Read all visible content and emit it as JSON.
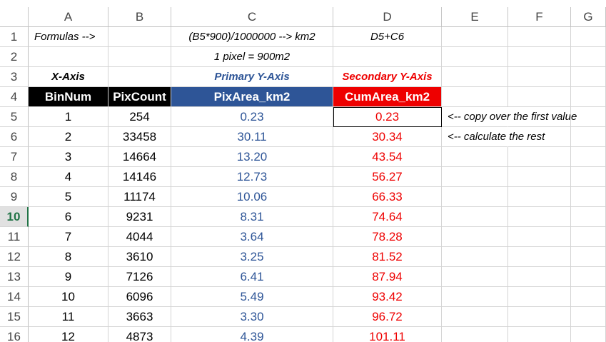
{
  "columns": [
    "A",
    "B",
    "C",
    "D",
    "E",
    "F",
    "G"
  ],
  "row_numbers": [
    "1",
    "2",
    "3",
    "4",
    "5",
    "6",
    "7",
    "8",
    "9",
    "10",
    "11",
    "12",
    "13",
    "14",
    "15",
    "16"
  ],
  "active_row": "10",
  "r1": {
    "a": "Formulas -->",
    "c": "(B5*900)/1000000 --> km2",
    "d": "D5+C6"
  },
  "r2": {
    "c": "1 pixel = 900m2"
  },
  "r3": {
    "a": "X-Axis",
    "c": "Primary Y-Axis",
    "d": "Secondary Y-Axis"
  },
  "r4": {
    "a": "BinNum",
    "b": "PixCount",
    "c": "PixArea_km2",
    "d": "CumArea_km2"
  },
  "notes": {
    "r5": "<-- copy over the first value",
    "r6": "<-- calculate the rest"
  },
  "data_rows": [
    {
      "binnum": "1",
      "pixcount": "254",
      "pixarea": "0.23",
      "cumarea": "0.23"
    },
    {
      "binnum": "2",
      "pixcount": "33458",
      "pixarea": "30.11",
      "cumarea": "30.34"
    },
    {
      "binnum": "3",
      "pixcount": "14664",
      "pixarea": "13.20",
      "cumarea": "43.54"
    },
    {
      "binnum": "4",
      "pixcount": "14146",
      "pixarea": "12.73",
      "cumarea": "56.27"
    },
    {
      "binnum": "5",
      "pixcount": "11174",
      "pixarea": "10.06",
      "cumarea": "66.33"
    },
    {
      "binnum": "6",
      "pixcount": "9231",
      "pixarea": "8.31",
      "cumarea": "74.64"
    },
    {
      "binnum": "7",
      "pixcount": "4044",
      "pixarea": "3.64",
      "cumarea": "78.28"
    },
    {
      "binnum": "8",
      "pixcount": "3610",
      "pixarea": "3.25",
      "cumarea": "81.52"
    },
    {
      "binnum": "9",
      "pixcount": "7126",
      "pixarea": "6.41",
      "cumarea": "87.94"
    },
    {
      "binnum": "10",
      "pixcount": "6096",
      "pixarea": "5.49",
      "cumarea": "93.42"
    },
    {
      "binnum": "11",
      "pixcount": "3663",
      "pixarea": "3.30",
      "cumarea": "96.72"
    },
    {
      "binnum": "12",
      "pixcount": "4873",
      "pixarea": "4.39",
      "cumarea": "101.11"
    }
  ],
  "colors": {
    "header_black": "#000000",
    "header_blue": "#2e5597",
    "header_red": "#ee0000",
    "active_row_green": "#217346"
  }
}
